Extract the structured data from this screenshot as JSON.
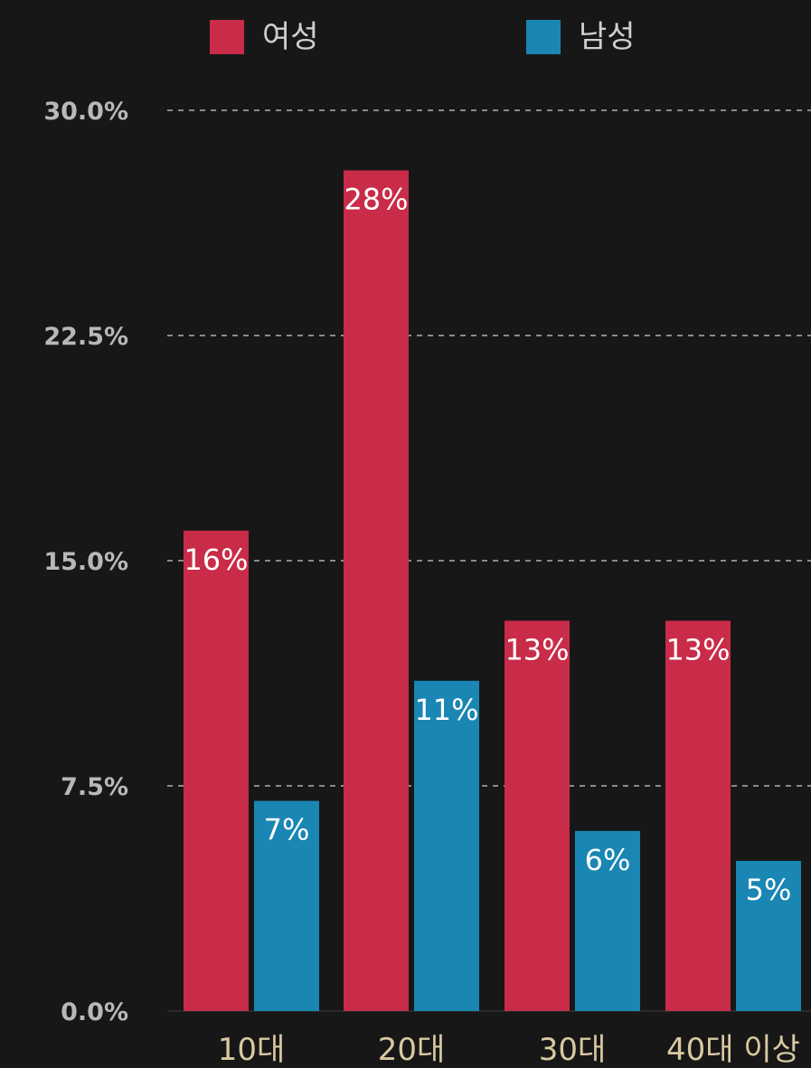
{
  "chart_data": {
    "type": "bar",
    "categories": [
      "10대",
      "20대",
      "30대",
      "40대 이상"
    ],
    "series": [
      {
        "name": "여성",
        "color": "#c92c48",
        "values": [
          16,
          28,
          13,
          13
        ],
        "labels": [
          "16%",
          "28%",
          "13%",
          "13%"
        ]
      },
      {
        "name": "남성",
        "color": "#1a86b4",
        "values": [
          7,
          11,
          6,
          5
        ],
        "labels": [
          "7%",
          "11%",
          "6%",
          "5%"
        ]
      }
    ],
    "y_ticks": [
      0,
      7.5,
      15,
      22.5,
      30
    ],
    "y_tick_labels": [
      "0.0%",
      "7.5%",
      "15.0%",
      "22.5%",
      "30.0%"
    ],
    "ylim": [
      0,
      30
    ],
    "grid": true,
    "legend_position": "top"
  },
  "colors": {
    "background": "#171717"
  }
}
